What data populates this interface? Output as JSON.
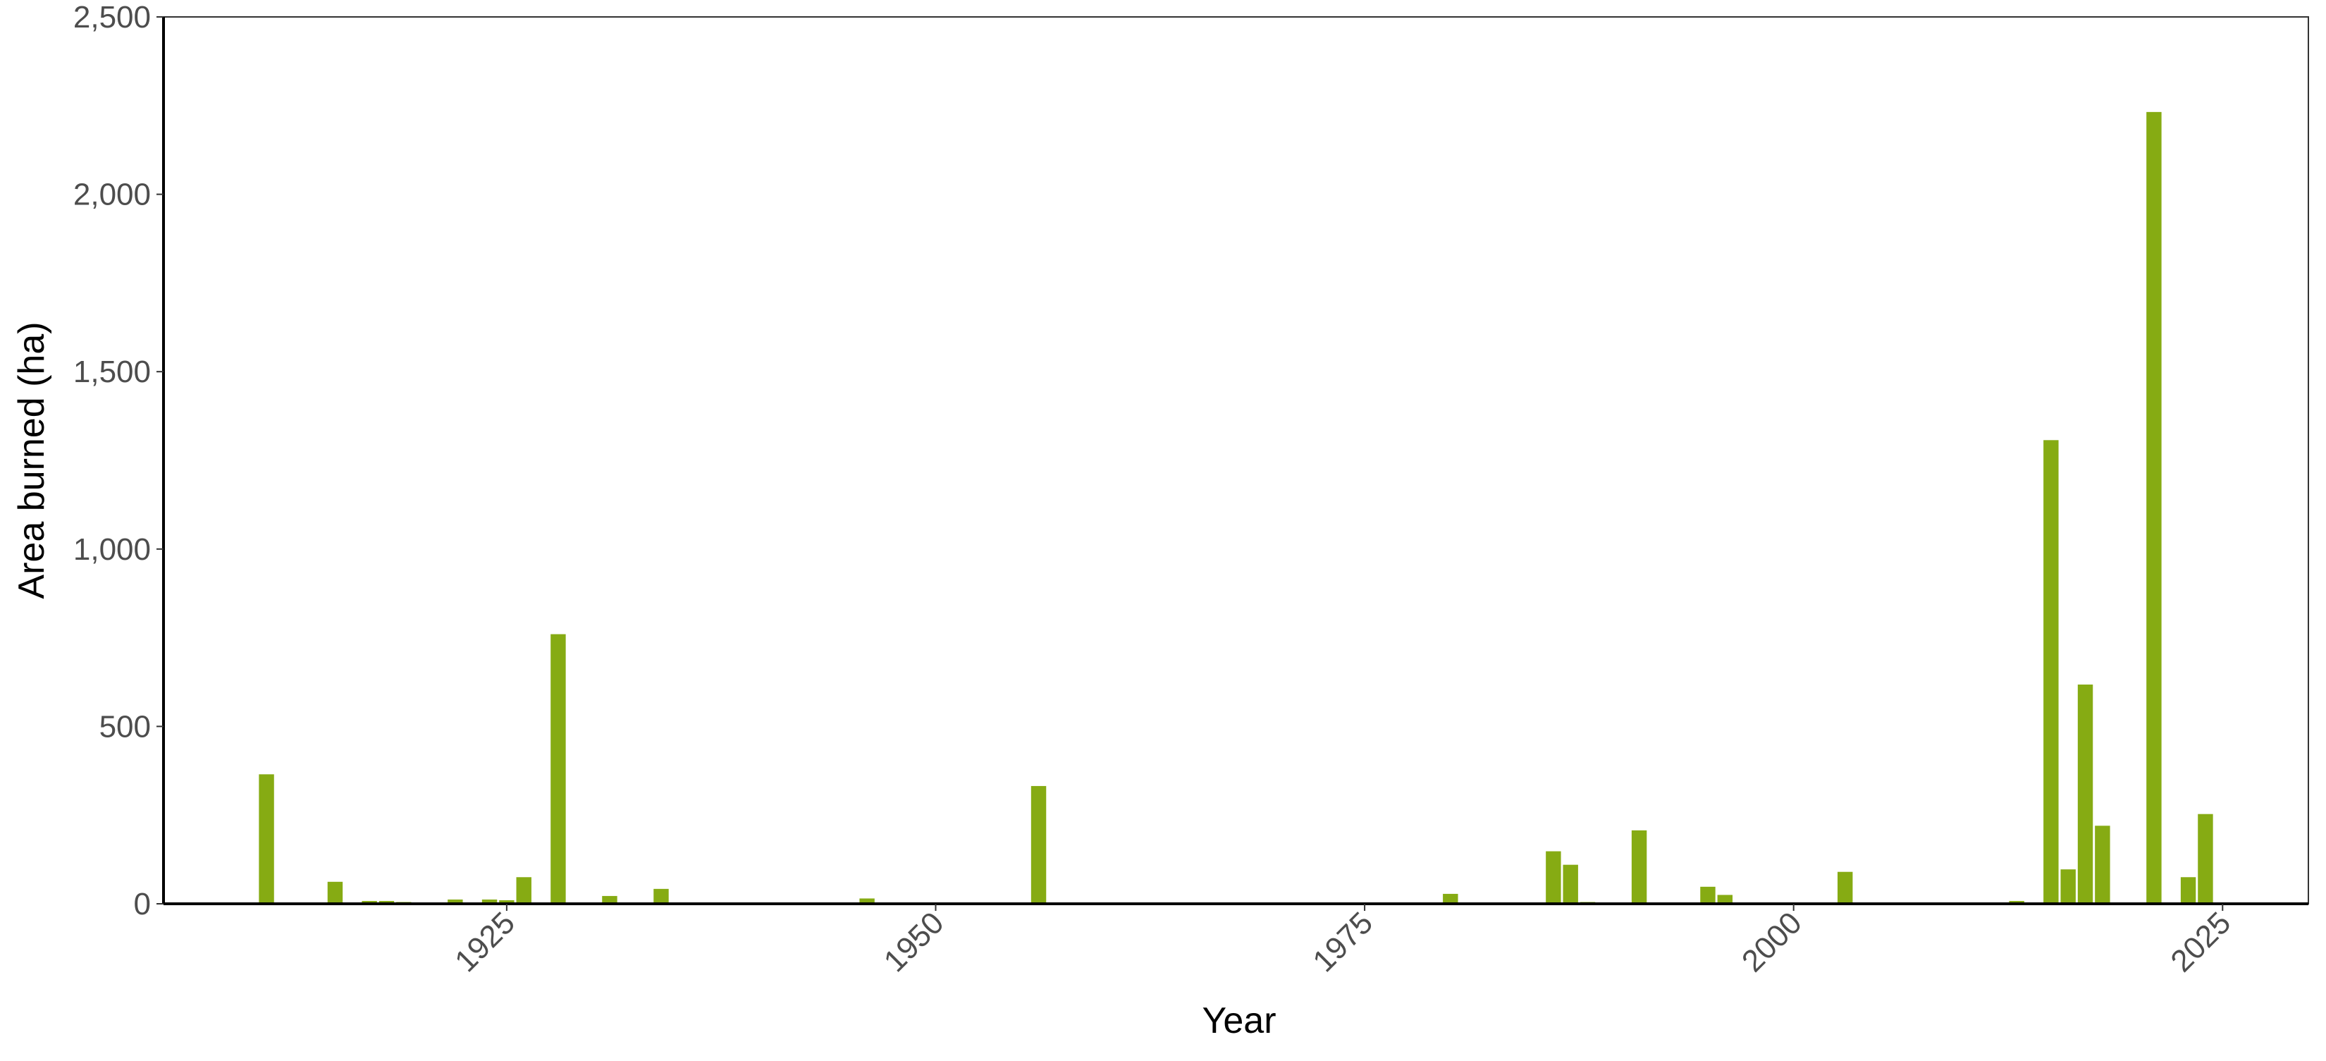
{
  "chart_data": {
    "type": "bar",
    "title": "",
    "xlabel": "Year",
    "ylabel": "Area burned (ha)",
    "xlim": [
      1905,
      2030
    ],
    "ylim": [
      0,
      2500
    ],
    "x_ticks": [
      1925,
      1950,
      1975,
      2000,
      2025
    ],
    "x_tick_labels": [
      "1925",
      "1950",
      "1975",
      "2000",
      "2025"
    ],
    "y_ticks": [
      0,
      500,
      1000,
      1500,
      2000,
      2500
    ],
    "y_tick_labels": [
      "0",
      "500",
      "1,000",
      "1,500",
      "2,000",
      "2,500"
    ],
    "grid": false,
    "bar_color": "#86ab13",
    "x": [
      1911,
      1915,
      1917,
      1918,
      1919,
      1922,
      1924,
      1925,
      1926,
      1928,
      1931,
      1934,
      1946,
      1956,
      1970,
      1980,
      1986,
      1987,
      1988,
      1991,
      1995,
      1996,
      2003,
      2011,
      2013,
      2015,
      2016,
      2017,
      2018,
      2021,
      2023,
      2024
    ],
    "values": [
      365,
      62,
      8,
      8,
      5,
      12,
      12,
      10,
      75,
      760,
      22,
      42,
      15,
      332,
      3,
      28,
      148,
      110,
      5,
      207,
      48,
      25,
      90,
      3,
      8,
      1307,
      97,
      618,
      220,
      2232,
      75,
      253
    ]
  }
}
